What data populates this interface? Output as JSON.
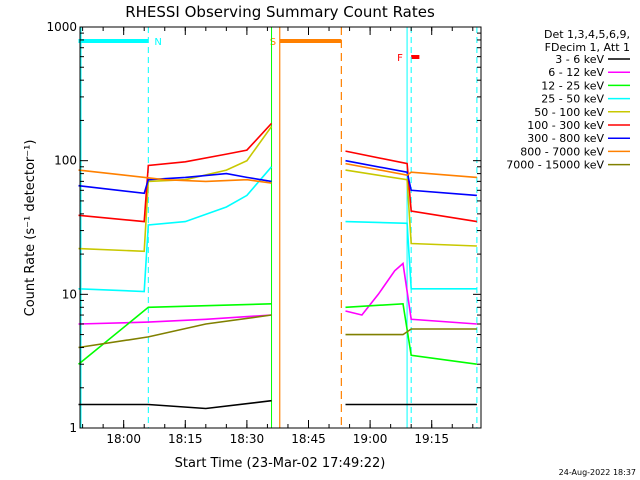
{
  "chart_data": {
    "type": "line",
    "title": "RHESSI Observing Summary Count Rates",
    "xlabel": "Start Time (23-Mar-02 17:49:22)",
    "ylabel": "Count Rate (s⁻¹ detector⁻¹)",
    "yscale": "log",
    "ylim": [
      1,
      1000
    ],
    "xlim": [
      "17:49:22",
      "19:27:00"
    ],
    "x_ticks": [
      "18:00",
      "18:15",
      "18:30",
      "18:45",
      "19:00",
      "19:15"
    ],
    "y_ticks": [
      "1",
      "10",
      "100",
      "1000"
    ],
    "footer": "24-Aug-2022 18:37",
    "legend_position": "top-right",
    "legend_header": [
      "Det 1,3,4,5,6,9,",
      "FDecim 1, Att 1"
    ],
    "data_gap": {
      "start": "18:38",
      "end": "18:53"
    },
    "flags": [
      {
        "label": "N",
        "color": "#00ffff",
        "start": "17:49",
        "end": "18:06"
      },
      {
        "label": "S",
        "color": "#ff8000",
        "start": "18:38",
        "end": "18:53"
      },
      {
        "label": "F",
        "color": "#ff0000",
        "start": "19:10",
        "end": "19:12"
      }
    ],
    "series": [
      {
        "name": "3 - 6 keV",
        "color": "#000000",
        "points": [
          [
            "17:49",
            1.5
          ],
          [
            "18:06",
            1.5
          ],
          [
            "18:20",
            1.4
          ],
          [
            "18:36",
            1.6
          ],
          [
            "18:54",
            1.5
          ],
          [
            "19:10",
            1.5
          ],
          [
            "19:26",
            1.5
          ]
        ]
      },
      {
        "name": "6 - 12 keV",
        "color": "#ff00ff",
        "points": [
          [
            "17:49",
            6.0
          ],
          [
            "18:06",
            6.2
          ],
          [
            "18:20",
            6.5
          ],
          [
            "18:36",
            7.0
          ],
          [
            "18:54",
            7.5
          ],
          [
            "18:58",
            7.0
          ],
          [
            "19:02",
            10.0
          ],
          [
            "19:06",
            15.0
          ],
          [
            "19:08",
            17.0
          ],
          [
            "19:10",
            6.5
          ],
          [
            "19:26",
            6.0
          ]
        ]
      },
      {
        "name": "12 - 25 keV",
        "color": "#00ff00",
        "points": [
          [
            "17:49",
            3.0
          ],
          [
            "18:06",
            8.0
          ],
          [
            "18:36",
            8.5
          ],
          [
            "18:54",
            8.0
          ],
          [
            "19:08",
            8.5
          ],
          [
            "19:10",
            3.5
          ],
          [
            "19:26",
            3.0
          ]
        ]
      },
      {
        "name": "25 - 50 keV",
        "color": "#00ffff",
        "points": [
          [
            "17:49",
            11.0
          ],
          [
            "18:05",
            10.5
          ],
          [
            "18:06",
            33.0
          ],
          [
            "18:15",
            35.0
          ],
          [
            "18:25",
            45.0
          ],
          [
            "18:30",
            55.0
          ],
          [
            "18:36",
            90.0
          ],
          [
            "18:54",
            35.0
          ],
          [
            "19:09",
            34.0
          ],
          [
            "19:10",
            11.0
          ],
          [
            "19:26",
            11.0
          ]
        ]
      },
      {
        "name": "50 - 100 keV",
        "color": "#c8c800",
        "points": [
          [
            "17:49",
            22.0
          ],
          [
            "18:05",
            21.0
          ],
          [
            "18:06",
            70.0
          ],
          [
            "18:15",
            72.0
          ],
          [
            "18:25",
            85.0
          ],
          [
            "18:30",
            100.0
          ],
          [
            "18:36",
            180.0
          ],
          [
            "18:54",
            85.0
          ],
          [
            "19:09",
            72.0
          ],
          [
            "19:10",
            24.0
          ],
          [
            "19:26",
            23.0
          ]
        ]
      },
      {
        "name": "100 - 300 keV",
        "color": "#ff0000",
        "points": [
          [
            "17:49",
            39.0
          ],
          [
            "18:05",
            35.0
          ],
          [
            "18:06",
            92.0
          ],
          [
            "18:15",
            98.0
          ],
          [
            "18:25",
            112.0
          ],
          [
            "18:30",
            120.0
          ],
          [
            "18:36",
            190.0
          ],
          [
            "18:54",
            118.0
          ],
          [
            "19:09",
            95.0
          ],
          [
            "19:10",
            42.0
          ],
          [
            "19:26",
            35.0
          ]
        ]
      },
      {
        "name": "300 - 800 keV",
        "color": "#0000ff",
        "points": [
          [
            "17:49",
            65.0
          ],
          [
            "18:05",
            57.0
          ],
          [
            "18:06",
            72.0
          ],
          [
            "18:15",
            75.0
          ],
          [
            "18:25",
            80.0
          ],
          [
            "18:30",
            75.0
          ],
          [
            "18:36",
            70.0
          ],
          [
            "18:54",
            100.0
          ],
          [
            "19:09",
            82.0
          ],
          [
            "19:10",
            60.0
          ],
          [
            "19:26",
            55.0
          ]
        ]
      },
      {
        "name": "800 - 7000 keV",
        "color": "#ff8000",
        "points": [
          [
            "17:49",
            85.0
          ],
          [
            "18:00",
            78.0
          ],
          [
            "18:10",
            72.0
          ],
          [
            "18:20",
            70.0
          ],
          [
            "18:30",
            72.0
          ],
          [
            "18:36",
            68.0
          ],
          [
            "18:54",
            95.0
          ],
          [
            "19:09",
            78.0
          ],
          [
            "19:10",
            82.0
          ],
          [
            "19:26",
            75.0
          ]
        ]
      },
      {
        "name": "7000 - 15000 keV",
        "color": "#808000",
        "points": [
          [
            "17:49",
            4.0
          ],
          [
            "18:06",
            4.8
          ],
          [
            "18:20",
            6.0
          ],
          [
            "18:36",
            7.0
          ],
          [
            "18:54",
            5.0
          ],
          [
            "19:08",
            5.0
          ],
          [
            "19:10",
            5.5
          ],
          [
            "19:26",
            5.5
          ]
        ]
      }
    ]
  }
}
